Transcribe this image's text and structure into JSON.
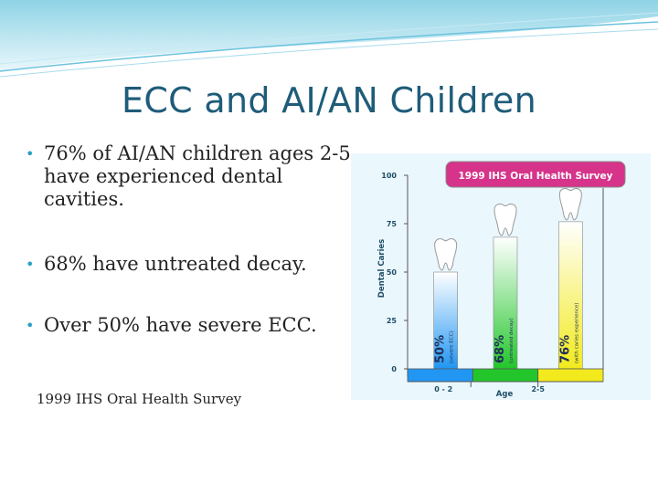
{
  "slide": {
    "title": "ECC and AI/AN Children",
    "bullets": [
      "76% of AI/AN children ages 2-5 have experienced dental cavities.",
      "68%  have untreated decay.",
      "Over 50% have severe ECC."
    ],
    "source": "1999 IHS Oral Health Survey",
    "bullet_icon": "bullet-dot",
    "colors": {
      "title": "#1f5c7a",
      "accent": "#2aa0c4",
      "banner": "#d6338a"
    }
  },
  "chart_data": {
    "type": "bar",
    "title": "1999 IHS Oral Health Survey",
    "ylabel": "Dental Caries",
    "xlabel": "Age",
    "ylim": [
      0,
      100
    ],
    "yticks": [
      0,
      25,
      50,
      75,
      100
    ],
    "x_tick_labels": [
      "0 - 2",
      "2-5"
    ],
    "bars": [
      {
        "value": 50,
        "value_label": "50%",
        "note": "(severe ECC)",
        "color": "#2196f3"
      },
      {
        "value": 68,
        "value_label": "68%",
        "note": "(untreated decay)",
        "color": "#22c62a"
      },
      {
        "value": 76,
        "value_label": "76%",
        "note": "(with caries experience)",
        "color": "#f2ea1d"
      }
    ],
    "icon": "tooth-icon"
  }
}
